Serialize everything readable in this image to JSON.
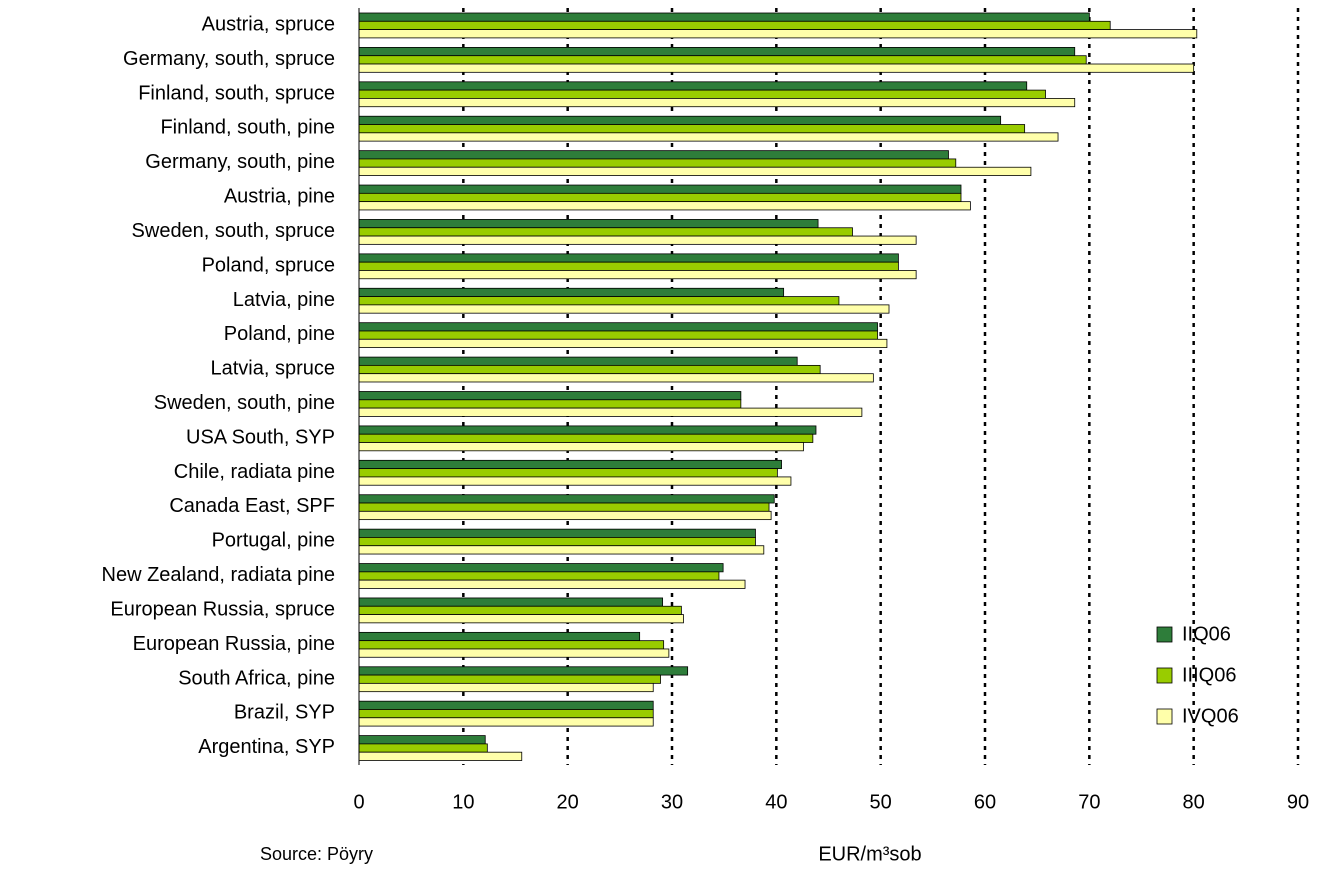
{
  "chart_data": {
    "type": "hbar",
    "x_label": "EUR/m³sob",
    "source": "Source: Pöyry",
    "categories": [
      "Austria, spruce",
      "Germany, south, spruce",
      "Finland, south, spruce",
      "Finland, south, pine",
      "Germany, south, pine",
      "Austria, pine",
      "Sweden, south, spruce",
      "Poland, spruce",
      "Latvia, pine",
      "Poland, pine",
      "Latvia, spruce",
      "Sweden, south, pine",
      "USA South, SYP",
      "Chile, radiata pine",
      "Canada East, SPF",
      "Portugal, pine",
      "New Zealand, radiata pine",
      "European Russia, spruce",
      "European Russia, pine",
      "South Africa, pine",
      "Brazil, SYP",
      "Argentina, SYP"
    ],
    "series": [
      {
        "name": "IIQ06",
        "color": "#2e7d3a",
        "values": [
          70,
          68.6,
          64,
          61.5,
          56.5,
          57.7,
          44,
          51.7,
          40.7,
          49.7,
          42,
          36.6,
          43.8,
          40.5,
          39.8,
          38,
          34.9,
          29.1,
          26.9,
          31.5,
          28.2,
          12.1
        ]
      },
      {
        "name": "IIIQ06",
        "color": "#99cc00",
        "values": [
          72,
          69.7,
          65.8,
          63.8,
          57.2,
          57.7,
          47.3,
          51.7,
          46,
          49.7,
          44.2,
          36.6,
          43.5,
          40.1,
          39.3,
          38,
          34.5,
          30.9,
          29.2,
          28.9,
          28.2,
          12.3
        ]
      },
      {
        "name": "IVQ06",
        "color": "#ffffaa",
        "values": [
          80.3,
          80,
          68.6,
          67,
          64.4,
          58.6,
          53.4,
          53.4,
          50.8,
          50.6,
          49.3,
          48.2,
          42.6,
          41.4,
          39.5,
          38.8,
          37,
          31.1,
          29.7,
          28.2,
          28.2,
          15.6
        ]
      }
    ],
    "xlim": [
      0,
      90
    ],
    "xticks": [
      0,
      10,
      20,
      30,
      40,
      50,
      60,
      70,
      80,
      90
    ],
    "grid": true
  }
}
